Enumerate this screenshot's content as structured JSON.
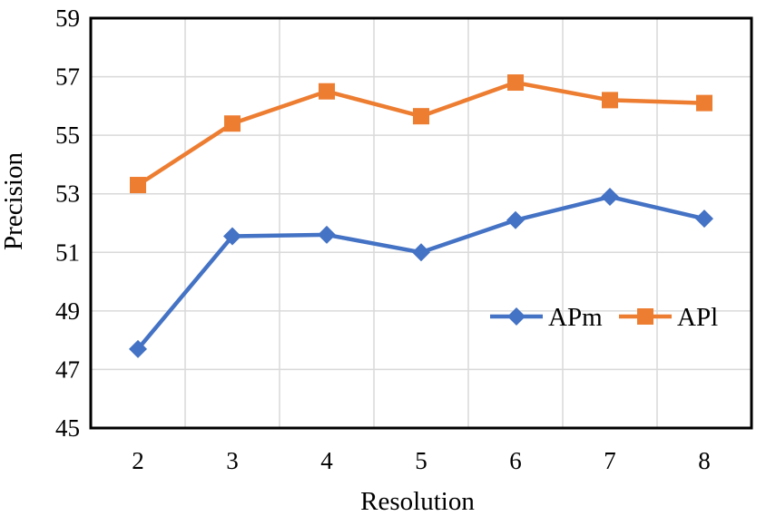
{
  "chart_data": {
    "type": "line",
    "xlabel": "Resolution",
    "ylabel": "Precision",
    "categories": [
      "2",
      "3",
      "4",
      "5",
      "6",
      "7",
      "8"
    ],
    "ylim": [
      45,
      59
    ],
    "yticks": [
      "45",
      "47",
      "49",
      "51",
      "53",
      "55",
      "57",
      "59"
    ],
    "grid": true,
    "legend_position": "right",
    "series": [
      {
        "name": "APm",
        "color": "#4472C4",
        "marker": "diamond",
        "values": [
          47.7,
          51.55,
          51.6,
          51.0,
          52.1,
          52.9,
          52.15
        ]
      },
      {
        "name": "APl",
        "color": "#ED7D31",
        "marker": "square",
        "values": [
          53.3,
          55.4,
          56.5,
          55.65,
          56.8,
          56.2,
          56.1
        ]
      }
    ]
  }
}
